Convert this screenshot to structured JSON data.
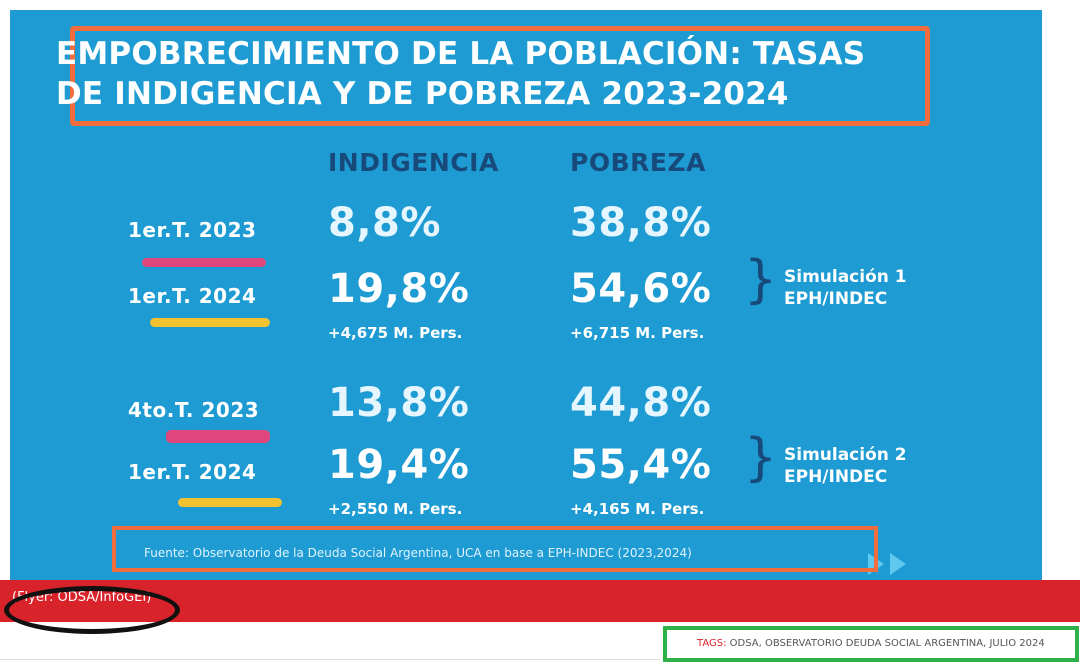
{
  "flyer": {
    "title": "EMPOBRECIMIENTO DE LA POBLACIÓN: TASAS DE INDIGENCIA Y DE POBREZA 2023-2024",
    "columns": [
      "INDIGENCIA",
      "POBREZA"
    ],
    "groups": [
      {
        "rows": [
          {
            "period": "1er.T. 2023",
            "indigencia": "8,8%",
            "pobreza": "38,8%"
          },
          {
            "period": "1er.T. 2024",
            "indigencia": "19,8%",
            "pobreza": "54,6%"
          }
        ],
        "delta_indigencia": "+4,675 M. Pers.",
        "delta_pobreza": "+6,715 M. Pers.",
        "simulation_line1": "Simulación 1",
        "simulation_line2": "EPH/INDEC"
      },
      {
        "rows": [
          {
            "period": "4to.T. 2023",
            "indigencia": "13,8%",
            "pobreza": "44,8%"
          },
          {
            "period": "1er.T. 2024",
            "indigencia": "19,4%",
            "pobreza": "55,4%"
          }
        ],
        "delta_indigencia": "+2,550 M. Pers.",
        "delta_pobreza": "+4,165 M. Pers.",
        "simulation_line1": "Simulación 2",
        "simulation_line2": "EPH/INDEC"
      }
    ],
    "source": "Fuente: Observatorio de la Deuda Social Argentina, UCA en base a EPH-INDEC (2023,2024)"
  },
  "credit": "(Flyer: ODSA/InfoGEI)",
  "tags": {
    "label": "TAGS:",
    "value": "ODSA, OBSERVATORIO DEUDA SOCIAL ARGENTINA, JULIO 2024"
  },
  "colors": {
    "background": "#1d9bd2",
    "highlight_orange": "#f26d3d",
    "band_red": "#d8232a",
    "underline_pink": "#e0457b",
    "underline_yellow": "#f2c230",
    "tag_green": "#2db24a"
  }
}
